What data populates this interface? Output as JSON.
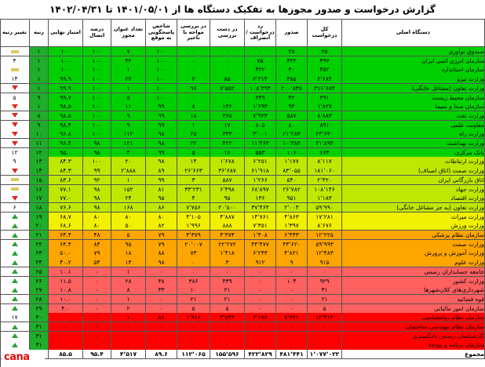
{
  "title": "گزارش درخواست و صدور مجوزها به تفکیک دستگاه ها از ۱۴۰۱/۰۵/۰۱ تا ۱۴۰۲/۰۴/۳۱",
  "logo_text": "cana",
  "columns": [
    {
      "key": "change",
      "label": "تغییر رتبه"
    },
    {
      "key": "rank",
      "label": "رتبه"
    },
    {
      "key": "score",
      "label": "امتیاز نهایی"
    },
    {
      "key": "connect",
      "label": "درصد اتصال"
    },
    {
      "key": "titles",
      "label": "تعداد عنوان مجوز"
    },
    {
      "key": "delay_idx",
      "label": "شاخص پاسخگویی به موقع"
    },
    {
      "key": "review_delay",
      "label": "در بررسی مواجه با تاخیر"
    },
    {
      "key": "review",
      "label": "در دست بررسی"
    },
    {
      "key": "reject",
      "label": "رد درخواست / انصراف"
    },
    {
      "key": "issued",
      "label": "صدور"
    },
    {
      "key": "total",
      "label": "کل درخواست"
    },
    {
      "key": "name",
      "label": "دستگاه اصلی"
    }
  ],
  "colors": {
    "green": "#00d000",
    "lime": "#bfe800",
    "yellow": "#f0f000",
    "orange": "#ffa500",
    "lightred": "#ff6060",
    "red": "#ff0000",
    "rank_bg": "#1fae2a",
    "arrow_up": "#2f9e2f",
    "arrow_down": "#d32c1d",
    "arrow_same": "#d8c860"
  },
  "rows": [
    {
      "name": "صندوق نوآوری",
      "total": "۲۵",
      "issued": "۲۵",
      "reject": "۰",
      "review": "۰",
      "review_delay": "۰",
      "delay_idx": "۱۰۰",
      "titles": "۷",
      "connect": "۱۰۰",
      "score": "۱۰۰",
      "rank": "۱",
      "change": "same",
      "band": "green"
    },
    {
      "name": "سازمان انرژی اتمی ایران",
      "total": "۴۹۷",
      "issued": "۴۲۲",
      "reject": "۷۵",
      "review": "۰",
      "review_delay": "۰",
      "delay_idx": "۱۰۰",
      "titles": "۴۲",
      "connect": "۱۰۰",
      "score": "۱۰۰",
      "rank": "۱",
      "change": "۴",
      "band": "green"
    },
    {
      "name": "سازمان استاندارد",
      "total": "۴۵۲",
      "issued": "۳۰",
      "reject": "۴۲۲",
      "review": "۰",
      "review_delay": "۰",
      "delay_idx": "۱۰۰",
      "titles": "۱",
      "connect": "۱۰۰",
      "score": "۱۰۰",
      "rank": "۱",
      "change": "same",
      "band": "green"
    },
    {
      "name": "وزارت نیرو",
      "total": "۲٬۶۸۴",
      "issued": "۳۸۵",
      "reject": "۲٬۲۱۴",
      "review": "۸۵",
      "review_delay": "۲",
      "delay_idx": "۱۰۰",
      "titles": "۲۲",
      "connect": "۱۰۰",
      "score": "۹۹.۹",
      "rank": "۱",
      "change": "۱۴",
      "band": "green"
    },
    {
      "name": "وزارت تعاون (مشاغل خانگی)",
      "total": "۳۱۶٬۶۸۴",
      "issued": "۲۰۰٬۸۳۸",
      "reject": "۱۰۸٬۲۹۴",
      "review": "۷٬۵۵۲",
      "review_delay": "۹۶",
      "delay_idx": "۱۰۰",
      "titles": "۱",
      "connect": "۱۰۰",
      "score": "۹۹.۹",
      "rank": "۱",
      "change": "down",
      "band": "green"
    },
    {
      "name": "سازمان محیط زیست",
      "total": "۲۹۱",
      "issued": "۴۲",
      "reject": "۲۴۹",
      "review": "۰",
      "review_delay": "۰",
      "delay_idx": "۱۰۰",
      "titles": "۵",
      "connect": "۱۰۰",
      "score": "۹۹.۷",
      "rank": "۹",
      "change": "۵",
      "band": "green"
    },
    {
      "name": "سازمان صدا و سیما",
      "total": "۱٬۸۲۷",
      "issued": "۹۳",
      "reject": "۱٬۶۹۳",
      "review": "۱۳۶",
      "review_delay": "۸",
      "delay_idx": "۹۹",
      "titles": "۱۱",
      "connect": "۱۰۰",
      "score": "۹۸.۵",
      "rank": "۱",
      "change": "down",
      "band": "green"
    },
    {
      "name": "وزارت نفت",
      "total": "۸٬۸۸۳",
      "issued": "۵۸۷",
      "reject": "۷٬۹۲۳",
      "review": "۳۶۵",
      "review_delay": "۱۸",
      "delay_idx": "۹۹",
      "titles": "۹",
      "connect": "۱۰۰",
      "score": "۹۸.۵",
      "rank": "۸",
      "change": "down",
      "band": "green"
    },
    {
      "name": "معاونت علمی",
      "total": "۸۹۱",
      "issued": "۸۰",
      "reject": "۸۰۵",
      "review": "۱۷",
      "review_delay": "۱",
      "delay_idx": "۹۹",
      "titles": "۹",
      "connect": "۱۰۰",
      "score": "۹۸.۴",
      "rank": "۹",
      "change": "down",
      "band": "green"
    },
    {
      "name": "وزارت راه",
      "total": "۲۴٬۶۴۰",
      "issued": "۲۱٬۲۸۳",
      "reject": "۳٬۰۰۱",
      "review": "۳۳۴",
      "review_delay": "۲۵",
      "delay_idx": "۹۸",
      "titles": "۱۱۲",
      "connect": "۱۰۰",
      "score": "۹۶.۸",
      "rank": "۱۰",
      "change": "down",
      "band": "green"
    },
    {
      "name": "وزارت بهداشت",
      "total": "۲۱٬۸۹۳",
      "issued": "۱۰٬۳۸۴",
      "reject": "۱۱٬۴۶۳",
      "review": "۴۲۲",
      "review_delay": "۲۲",
      "delay_idx": "۹۸",
      "titles": "۱۲۱",
      "connect": "۹۸",
      "score": "۹۶.۴",
      "rank": "۱۱",
      "change": "down",
      "band": "green"
    },
    {
      "name": "بانک مرکزی",
      "total": "۶۶۴",
      "issued": "۱۰۶",
      "reject": "۵۵۳",
      "review": "۱۶",
      "review_delay": "۵",
      "delay_idx": "۹۹",
      "titles": "۴",
      "connect": "۹۸",
      "score": "۹۵.۰",
      "rank": "۱۲",
      "change": "۱۲",
      "band": "green"
    },
    {
      "name": "وزارت ارتباطات",
      "total": "۸٬۱۱۷",
      "issued": "۱٬۱۷۷",
      "reject": "۶٬۲۵۱",
      "review": "۱٬۶۷۸",
      "review_delay": "۱۴",
      "delay_idx": "۹۸",
      "titles": "۲۰",
      "connect": "۱۰۰",
      "score": "۸۴.۳",
      "rank": "۱۳",
      "change": "۹",
      "band": "lime"
    },
    {
      "name": "وزارت صمت (اتاق اصناف)",
      "total": "۱۸۱٬۰۶۰",
      "issued": "۸۳٬۰۵۵",
      "reject": "۶۱٬۹۱۸",
      "review": "۳۶٬۶۸۷",
      "review_delay": "۲۶٬۶۶۳",
      "delay_idx": "۸۹",
      "titles": "۲٬۸۸۸",
      "connect": "۹۹",
      "score": "۸۴.۳",
      "rank": "۱۴",
      "change": "down",
      "band": "lime"
    },
    {
      "name": "اتاق بازرگانی ایران",
      "total": "۲٬۳۲۰",
      "issued": "۵۴۰",
      "reject": "۱٬۲۶۶",
      "review": "۵۸۷",
      "review_delay": "۳",
      "delay_idx": "۹۹",
      "titles": "۱",
      "connect": "۹۲",
      "score": "۸۳.۶",
      "rank": "۱۵",
      "change": "same",
      "band": "lime"
    },
    {
      "name": "وزارت جهاد",
      "total": "۱۰۸٬۱۴۶",
      "issued": "۲۶٬۷۸۲",
      "reject": "۶۸٬۸۹۷",
      "review": "۶٬۴۹۸",
      "review_delay": "۳۳٬۲۳۱",
      "delay_idx": "۸۱",
      "titles": "۱۵۲",
      "connect": "۹۸",
      "score": "۷۷.۱",
      "rank": "۱۶",
      "change": "same",
      "band": "lime"
    },
    {
      "name": "وزارت اقتصاد",
      "total": "۱٬۱۸۳",
      "issued": "۹۵۱",
      "reject": "۱۳۶",
      "review": "۹۵",
      "review_delay": "۴",
      "delay_idx": "۹۵",
      "titles": "۲۴",
      "connect": "۹۸",
      "score": "۷۷.۰",
      "rank": "۱۷",
      "change": "down",
      "band": "lime"
    },
    {
      "name": "وزارت تعاون (به جز مشاغل خانگی)",
      "total": "۵۹٬۹۹۰",
      "issued": "۲٬۰۰۴",
      "reject": "۳۷٬۴۶۴",
      "review": "۲۰٬۵۰۰",
      "review_delay": "۷٬۷۵۶",
      "delay_idx": "۸۶",
      "titles": "۱۶۸",
      "connect": "۹۸",
      "score": "۷۶.۶",
      "rank": "۱۸",
      "change": "۶",
      "band": "lime"
    },
    {
      "name": "وزارت میراث",
      "total": "۱۷٬۲۸۱",
      "issued": "۴٬۸۶۳",
      "reject": "۱۴٬۷۶۱",
      "review": "۴٬۸۸۷",
      "review_delay": "۴٬۱۰۵",
      "delay_idx": "۸۰",
      "titles": "۸۰",
      "connect": "۸۰",
      "score": "۶۸.۷",
      "rank": "۱۹",
      "change": "up",
      "band": "yellow"
    },
    {
      "name": "وزارت ورزش",
      "total": "۸٬۶۷۶",
      "issued": "۱٬۳۹۷",
      "reject": "۷٬۳۵۱",
      "review": "۸۸۸",
      "review_delay": "۱٬۹۹۶",
      "delay_idx": "۸۲",
      "titles": "۵۰",
      "connect": "۸۰",
      "score": "۶۸.۶",
      "rank": "۲۰",
      "change": "up",
      "band": "yellow"
    },
    {
      "name": "سازمان نظام پزشکی",
      "total": "۱۲٬۲۲۵",
      "issued": "۶٬۴۴۳",
      "reject": "۱٬۴۰۸",
      "review": "۴٬۳۷۴",
      "review_delay": "۴٬۳۷۹",
      "delay_idx": "۷۹",
      "titles": "۵",
      "connect": "۴۸",
      "score": "۶۴.۴",
      "rank": "۲۱",
      "change": "up",
      "band": "orange"
    },
    {
      "name": "وزارت صمت",
      "total": "۵۹٬۹۹۳",
      "issued": "۴۳٬۶۲۰",
      "reject": "۴۴٬۴۷۷",
      "review": "۲۲٬۲۷۲",
      "review_delay": "۲۰٬۰۰۷",
      "delay_idx": "۷۹",
      "titles": "۹۵",
      "connect": "۸۴",
      "score": "۶۴.۴",
      "rank": "۲۲",
      "change": "up",
      "band": "orange"
    },
    {
      "name": "وزارت آموزش و پرورش",
      "total": "۱۲٬۴۸۳",
      "issued": "۴٬۸۲۱",
      "reject": "۶٬۲۴۳",
      "review": "۱٬۴۱۸",
      "review_delay": "۷۳",
      "delay_idx": "۸۸",
      "titles": "۱۸",
      "connect": "۷۹",
      "score": "۵۰.۰",
      "rank": "۲۳",
      "change": "up",
      "band": "orange"
    },
    {
      "name": "وزارت علوم",
      "total": "۹۱۵",
      "issued": "۹",
      "reject": "۹۱۲",
      "review": "۳",
      "review_delay": "۰",
      "delay_idx": "۹۸",
      "titles": "۱۳",
      "connect": "۵۴",
      "score": "۴۰.۲",
      "rank": "۲۴",
      "change": "up",
      "band": "orange"
    },
    {
      "name": "جامعه حسابداران رسمی",
      "total": "۰",
      "issued": "۰",
      "reject": "۰",
      "review": "۰",
      "review_delay": "۰",
      "delay_idx": "۰",
      "titles": "۱",
      "connect": "۰",
      "score": "۱۰.۱",
      "rank": "۲۵",
      "change": "up",
      "band": "lightred"
    },
    {
      "name": "وزارت کشور",
      "total": "۹۲۹",
      "issued": "۱۰۴",
      "reject": "۰",
      "review": "۴۳۹",
      "review_delay": "۳۸۶",
      "delay_idx": "۳۸",
      "titles": "۲۸",
      "connect": "۰",
      "score": "۱۱.۵",
      "rank": "۲۶",
      "change": "up",
      "band": "lightred"
    },
    {
      "name": "شهرداری‌های کلان‌شهرها",
      "total": "۳۱",
      "issued": "۰",
      "reject": "۰",
      "review": "۲۱",
      "review_delay": "۱۰",
      "delay_idx": "۳۳",
      "titles": "۸",
      "connect": "۰",
      "score": "۱۰.۸",
      "rank": "۲۷",
      "change": "up",
      "band": "lightred"
    },
    {
      "name": "قوه قضائیه",
      "total": "۲۱",
      "issued": "۰",
      "reject": "۰",
      "review": "۲۱",
      "review_delay": "۲۱",
      "delay_idx": "۰",
      "titles": "۱",
      "connect": "۰",
      "score": "۱۰.۰",
      "rank": "۲۸",
      "change": "up",
      "band": "lightred"
    },
    {
      "name": "سازمان امور مالیاتی",
      "total": "۵",
      "issued": "۰",
      "reject": "۰",
      "review": "۵",
      "review_delay": "۵",
      "delay_idx": "۰",
      "titles": "۲",
      "connect": "۰",
      "score": "۴.۰",
      "rank": "۲۹",
      "change": "up",
      "band": "lightred"
    },
    {
      "name": "سازمان نظام روانشناسی",
      "total": "۱۲٬۴۱۳",
      "issued": "۷٬۷۲۱",
      "reject": "۲٬۱۷۶",
      "review": "۳٬۵۳۶",
      "review_delay": "۱٬۹۱۶",
      "delay_idx": "۸۶",
      "titles": "۱",
      "connect": "۰",
      "score": "۰",
      "rank": "۳۰",
      "change": "۱۷",
      "band": "red"
    },
    {
      "name": "سازمان نظام مهندسی ساختمان",
      "total": "۰",
      "issued": "۰",
      "reject": "۰",
      "review": "۰",
      "review_delay": "۰",
      "delay_idx": "۰",
      "titles": "۰",
      "connect": "۰",
      "score": "۰",
      "rank": "۳۱",
      "change": "up",
      "band": "red"
    },
    {
      "name": "کارشناسان رسمی دادگستری",
      "total": "۰",
      "issued": "۰",
      "reject": "۰",
      "review": "۰",
      "review_delay": "۰",
      "delay_idx": "۰",
      "titles": "۰",
      "connect": "۰",
      "score": "۰",
      "rank": "۳۱",
      "change": "up",
      "band": "red"
    },
    {
      "name": "سازمان برنامه و بودجه",
      "total": "۰",
      "issued": "۰",
      "reject": "۰",
      "review": "۰",
      "review_delay": "۰",
      "delay_idx": "۰",
      "titles": "۰",
      "connect": "۰",
      "score": "۰",
      "rank": "۳۱",
      "change": "up",
      "band": "red"
    }
  ],
  "totals": {
    "name": "مجموع",
    "total": "۱٬۰۷۷٬۰۲۲",
    "issued": "۴۸۱٬۴۴۱",
    "reject": "۴۲۲٬۸۲۹",
    "review": "۱۵۵٬۵۹۶",
    "review_delay": "۱۱۲٬۰۶۵",
    "delay_idx": "۸۹.۶",
    "titles": "۴٬۵۱۷",
    "connect": "۹۵.۴",
    "score": "۸۵.۵",
    "rank": "",
    "change": ""
  }
}
